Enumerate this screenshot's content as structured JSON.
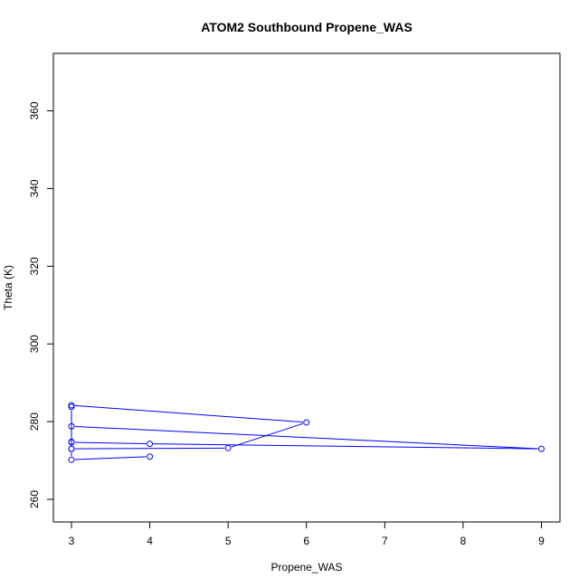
{
  "chart_data": {
    "type": "line",
    "title": "ATOM2 Southbound Propene_WAS",
    "xlabel": "Propene_WAS",
    "ylabel": "Theta (K)",
    "xlim": [
      3,
      9
    ],
    "ylim": [
      255,
      375
    ],
    "xticks": [
      "3",
      "4",
      "5",
      "6",
      "7",
      "8",
      "9"
    ],
    "yticks": [
      "260",
      "280",
      "300",
      "320",
      "340",
      "360"
    ],
    "grid": false,
    "series": [
      {
        "color": "#0000ff",
        "marker": "open-circle",
        "x": [
          4,
          3,
          3,
          3,
          3,
          3,
          6,
          5,
          3,
          3,
          9,
          4,
          3
        ],
        "y": [
          271.0,
          270.2,
          273.0,
          274.8,
          283.8,
          284.2,
          279.8,
          273.2,
          273.0,
          278.8,
          273.0,
          274.3,
          274.7
        ]
      }
    ]
  }
}
